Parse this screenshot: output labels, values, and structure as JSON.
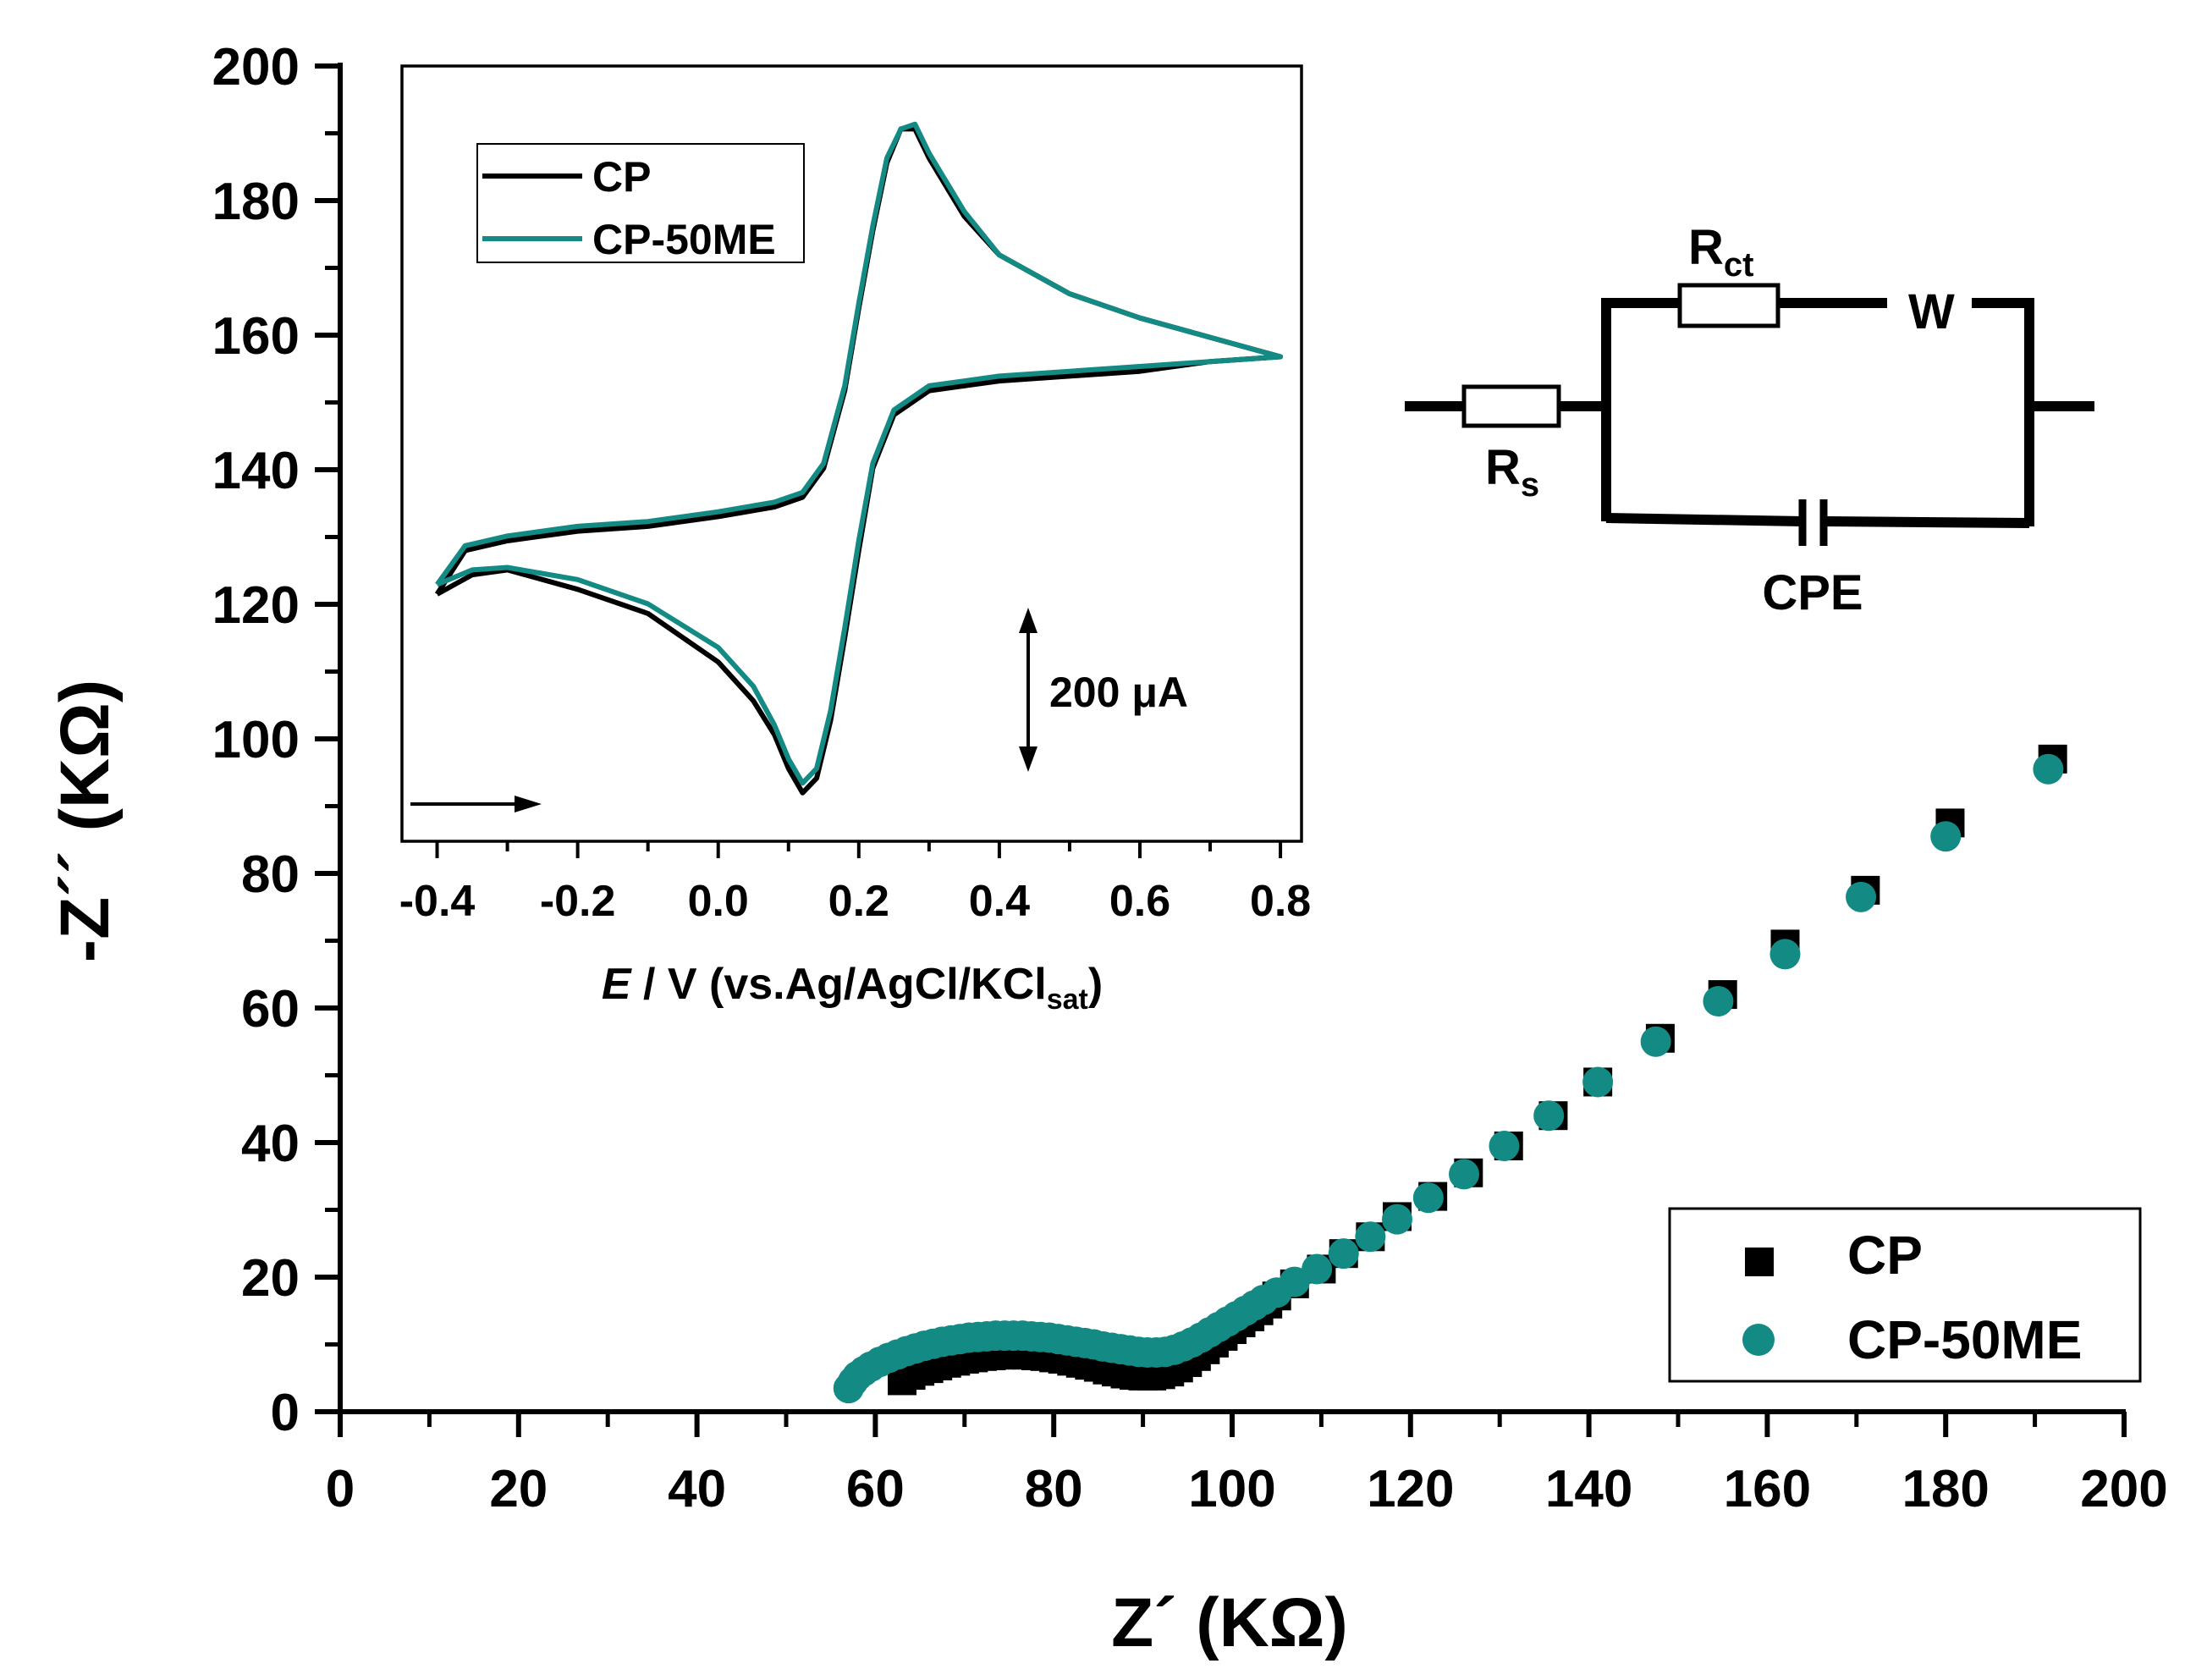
{
  "colors": {
    "cp": "#000000",
    "cp50me": "#138a84",
    "axis": "#000000",
    "background": "#ffffff"
  },
  "chart_data": [
    {
      "type": "scatter",
      "xlabel": "Z´ (KΩ)",
      "ylabel": "-Z´´ (KΩ)",
      "xlim": [
        0,
        200
      ],
      "ylim": [
        0,
        200
      ],
      "xticks": [
        "0",
        "20",
        "40",
        "60",
        "80",
        "100",
        "120",
        "140",
        "160",
        "180",
        "200"
      ],
      "yticks": [
        "0",
        "20",
        "40",
        "60",
        "80",
        "100",
        "120",
        "140",
        "160",
        "180",
        "200"
      ],
      "legend": {
        "position": "bottom-right",
        "entries": [
          "CP",
          "CP-50ME"
        ]
      },
      "series": [
        {
          "name": "CP",
          "marker": "square",
          "points": [
            [
              63,
              4.6
            ],
            [
              64,
              5.4
            ],
            [
              65,
              6.0
            ],
            [
              66,
              6.4
            ],
            [
              67,
              6.8
            ],
            [
              68,
              7.2
            ],
            [
              69,
              7.5
            ],
            [
              70,
              7.8
            ],
            [
              71,
              8.0
            ],
            [
              72,
              8.2
            ],
            [
              73,
              8.3
            ],
            [
              74,
              8.4
            ],
            [
              75,
              8.5
            ],
            [
              76,
              8.5
            ],
            [
              77,
              8.4
            ],
            [
              78,
              8.3
            ],
            [
              79,
              8.2
            ],
            [
              80,
              8.0
            ],
            [
              81,
              7.8
            ],
            [
              82,
              7.5
            ],
            [
              83,
              7.2
            ],
            [
              84,
              6.9
            ],
            [
              85,
              6.6
            ],
            [
              86,
              6.2
            ],
            [
              87,
              5.9
            ],
            [
              88,
              5.6
            ],
            [
              89,
              5.4
            ],
            [
              90,
              5.3
            ],
            [
              91,
              5.3
            ],
            [
              92,
              5.5
            ],
            [
              93,
              5.9
            ],
            [
              94,
              6.5
            ],
            [
              95,
              7.3
            ],
            [
              96,
              8.2
            ],
            [
              97,
              9.2
            ],
            [
              98,
              10.2
            ],
            [
              99,
              11.2
            ],
            [
              100,
              12.2
            ],
            [
              101,
              13.2
            ],
            [
              102,
              14.1
            ],
            [
              103,
              15.0
            ],
            [
              104,
              16.0
            ],
            [
              105,
              17.2
            ],
            [
              107,
              19.0
            ],
            [
              110,
              21.2
            ],
            [
              112.5,
              23.5
            ],
            [
              115.5,
              26.0
            ],
            [
              118.5,
              29.0
            ],
            [
              122.5,
              32.0
            ],
            [
              126.5,
              35.5
            ],
            [
              131,
              39.5
            ],
            [
              136,
              44.0
            ],
            [
              141,
              49.0
            ],
            [
              148,
              55.5
            ],
            [
              155,
              62.0
            ],
            [
              162,
              69.5
            ],
            [
              171,
              77.5
            ],
            [
              180.5,
              87.5
            ],
            [
              192,
              97.0
            ]
          ]
        },
        {
          "name": "CP-50ME",
          "marker": "circle",
          "points": [
            [
              57,
              3.5
            ],
            [
              57.5,
              4.5
            ],
            [
              58,
              5.3
            ],
            [
              58.7,
              6.0
            ],
            [
              59.5,
              6.7
            ],
            [
              60.5,
              7.4
            ],
            [
              61.5,
              8.0
            ],
            [
              62.5,
              8.5
            ],
            [
              63.5,
              9.0
            ],
            [
              64.5,
              9.4
            ],
            [
              65.5,
              9.8
            ],
            [
              66.5,
              10.1
            ],
            [
              67.5,
              10.4
            ],
            [
              68.5,
              10.6
            ],
            [
              69.5,
              10.8
            ],
            [
              70.5,
              11.0
            ],
            [
              71.5,
              11.1
            ],
            [
              72.5,
              11.2
            ],
            [
              73.5,
              11.3
            ],
            [
              74.5,
              11.3
            ],
            [
              75.5,
              11.3
            ],
            [
              76.5,
              11.3
            ],
            [
              77.5,
              11.2
            ],
            [
              78.5,
              11.1
            ],
            [
              79.5,
              11.0
            ],
            [
              80.5,
              10.8
            ],
            [
              81.5,
              10.6
            ],
            [
              82.5,
              10.4
            ],
            [
              83.5,
              10.2
            ],
            [
              84.5,
              10.0
            ],
            [
              85.5,
              9.7
            ],
            [
              86.5,
              9.5
            ],
            [
              87.5,
              9.3
            ],
            [
              88.5,
              9.1
            ],
            [
              89.5,
              8.9
            ],
            [
              90.5,
              8.8
            ],
            [
              91.5,
              8.8
            ],
            [
              92.5,
              8.9
            ],
            [
              93.5,
              9.2
            ],
            [
              94.5,
              9.7
            ],
            [
              95.5,
              10.3
            ],
            [
              96.5,
              11.0
            ],
            [
              97.5,
              11.8
            ],
            [
              98.5,
              12.6
            ],
            [
              99.5,
              13.4
            ],
            [
              100.5,
              14.2
            ],
            [
              101.5,
              15.0
            ],
            [
              102.5,
              15.8
            ],
            [
              103.5,
              16.6
            ],
            [
              105,
              17.7
            ],
            [
              107,
              19.3
            ],
            [
              109.5,
              21.2
            ],
            [
              112.5,
              23.5
            ],
            [
              115.5,
              26.0
            ],
            [
              118.5,
              28.6
            ],
            [
              122,
              31.8
            ],
            [
              126,
              35.3
            ],
            [
              130.5,
              39.5
            ],
            [
              135.5,
              44.0
            ],
            [
              141,
              49.0
            ],
            [
              147.5,
              55.0
            ],
            [
              154.5,
              61.0
            ],
            [
              162,
              68.0
            ],
            [
              170.5,
              76.5
            ],
            [
              180,
              85.5
            ],
            [
              191.5,
              95.5
            ]
          ]
        }
      ]
    },
    {
      "type": "line",
      "xlabel": "E / V (vs.Ag/AgCl/KCl_sat)",
      "xlabel_parts": {
        "italic": "E",
        "main": " / V (vs.Ag/AgCl/KCl",
        "sub": "sat",
        "close": ")"
      },
      "xlim": [
        -0.45,
        0.83
      ],
      "xticks": [
        "-0.4",
        "-0.2",
        "0.0",
        "0.2",
        "0.4",
        "0.6",
        "0.8"
      ],
      "ylim": [
        -0.55,
        1.05
      ],
      "scale_bar": {
        "label": "200 μA",
        "value": 200,
        "unit": "μA"
      },
      "direction_arrow": "forward scan",
      "legend": {
        "position": "top-left",
        "entries": [
          "CP",
          "CP-50ME"
        ]
      },
      "series": [
        {
          "name": "CP",
          "points": [
            [
              -0.4,
              -0.04
            ],
            [
              -0.35,
              0.0
            ],
            [
              -0.3,
              0.01
            ],
            [
              -0.2,
              -0.03
            ],
            [
              -0.1,
              -0.08
            ],
            [
              0.0,
              -0.18
            ],
            [
              0.05,
              -0.26
            ],
            [
              0.08,
              -0.33
            ],
            [
              0.1,
              -0.4
            ],
            [
              0.12,
              -0.45
            ],
            [
              0.14,
              -0.42
            ],
            [
              0.16,
              -0.3
            ],
            [
              0.18,
              -0.13
            ],
            [
              0.2,
              0.05
            ],
            [
              0.22,
              0.22
            ],
            [
              0.25,
              0.33
            ],
            [
              0.3,
              0.38
            ],
            [
              0.4,
              0.4
            ],
            [
              0.5,
              0.41
            ],
            [
              0.6,
              0.42
            ],
            [
              0.7,
              0.44
            ],
            [
              0.8,
              0.45
            ],
            [
              0.7,
              0.49
            ],
            [
              0.6,
              0.53
            ],
            [
              0.5,
              0.58
            ],
            [
              0.4,
              0.66
            ],
            [
              0.35,
              0.74
            ],
            [
              0.3,
              0.86
            ],
            [
              0.28,
              0.92
            ],
            [
              0.26,
              0.92
            ],
            [
              0.24,
              0.85
            ],
            [
              0.22,
              0.71
            ],
            [
              0.2,
              0.55
            ],
            [
              0.18,
              0.38
            ],
            [
              0.15,
              0.22
            ],
            [
              0.12,
              0.16
            ],
            [
              0.08,
              0.14
            ],
            [
              0.0,
              0.12
            ],
            [
              -0.1,
              0.1
            ],
            [
              -0.2,
              0.09
            ],
            [
              -0.3,
              0.07
            ],
            [
              -0.36,
              0.05
            ],
            [
              -0.4,
              -0.04
            ]
          ]
        },
        {
          "name": "CP-50ME",
          "points": [
            [
              -0.4,
              -0.02
            ],
            [
              -0.35,
              0.01
            ],
            [
              -0.3,
              0.015
            ],
            [
              -0.2,
              -0.01
            ],
            [
              -0.1,
              -0.06
            ],
            [
              0.0,
              -0.15
            ],
            [
              0.05,
              -0.23
            ],
            [
              0.08,
              -0.31
            ],
            [
              0.1,
              -0.38
            ],
            [
              0.12,
              -0.43
            ],
            [
              0.14,
              -0.4
            ],
            [
              0.16,
              -0.28
            ],
            [
              0.18,
              -0.11
            ],
            [
              0.2,
              0.07
            ],
            [
              0.22,
              0.23
            ],
            [
              0.25,
              0.34
            ],
            [
              0.3,
              0.39
            ],
            [
              0.4,
              0.41
            ],
            [
              0.5,
              0.42
            ],
            [
              0.6,
              0.43
            ],
            [
              0.7,
              0.44
            ],
            [
              0.8,
              0.45
            ],
            [
              0.7,
              0.49
            ],
            [
              0.6,
              0.53
            ],
            [
              0.5,
              0.58
            ],
            [
              0.4,
              0.66
            ],
            [
              0.35,
              0.75
            ],
            [
              0.3,
              0.87
            ],
            [
              0.28,
              0.93
            ],
            [
              0.26,
              0.92
            ],
            [
              0.24,
              0.86
            ],
            [
              0.22,
              0.72
            ],
            [
              0.2,
              0.56
            ],
            [
              0.18,
              0.39
            ],
            [
              0.15,
              0.23
            ],
            [
              0.12,
              0.17
            ],
            [
              0.08,
              0.15
            ],
            [
              0.0,
              0.13
            ],
            [
              -0.1,
              0.11
            ],
            [
              -0.2,
              0.1
            ],
            [
              -0.3,
              0.08
            ],
            [
              -0.36,
              0.06
            ],
            [
              -0.4,
              -0.02
            ]
          ]
        }
      ]
    }
  ],
  "circuit": {
    "rs": "R",
    "rs_sub": "s",
    "rct": "R",
    "rct_sub": "ct",
    "w": "W",
    "cpe": "CPE"
  }
}
